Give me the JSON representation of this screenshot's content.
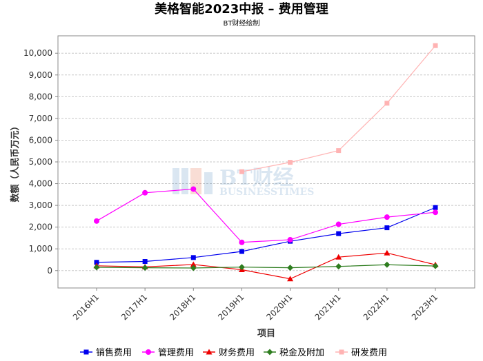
{
  "chart_data": {
    "type": "line",
    "title": "美格智能2023中报 – 费用管理",
    "subtitle": "BT财经绘制",
    "xlabel": "项目",
    "ylabel": "数额（人民币万元）",
    "ylim": [
      -800,
      10800
    ],
    "yticks": [
      0,
      1000,
      2000,
      3000,
      4000,
      5000,
      6000,
      7000,
      8000,
      9000,
      10000
    ],
    "ytick_labels": [
      "0",
      "1,000",
      "2,000",
      "3,000",
      "4,000",
      "5,000",
      "6,000",
      "7,000",
      "8,000",
      "9,000",
      "10,000"
    ],
    "grid": true,
    "legend_position": "bottom",
    "categories": [
      "2016H1",
      "2017H1",
      "2018H1",
      "2019H1",
      "2020H1",
      "2021H1",
      "2022H1",
      "2023H1"
    ],
    "series": [
      {
        "name": "销售费用",
        "color": "#0000ee",
        "marker": "square",
        "values": [
          380,
          420,
          600,
          880,
          1350,
          1700,
          1970,
          2900
        ]
      },
      {
        "name": "管理费用",
        "color": "#ff00ff",
        "marker": "circle",
        "values": [
          2280,
          3580,
          3750,
          1300,
          1420,
          2130,
          2460,
          2680
        ]
      },
      {
        "name": "财务费用",
        "color": "#ee0000",
        "marker": "triangle",
        "values": [
          220,
          170,
          280,
          40,
          -380,
          620,
          810,
          270
        ]
      },
      {
        "name": "税金及附加",
        "color": "#2e7d1f",
        "marker": "diamond",
        "values": [
          150,
          130,
          120,
          160,
          130,
          190,
          270,
          210
        ]
      },
      {
        "name": "研发费用",
        "color": "#ffb3b3",
        "marker": "square",
        "values": [
          null,
          null,
          null,
          4550,
          4980,
          5520,
          7700,
          10350
        ]
      }
    ],
    "watermark": {
      "line1": "BT财经",
      "line2": "BUSINESSTIMES"
    }
  }
}
